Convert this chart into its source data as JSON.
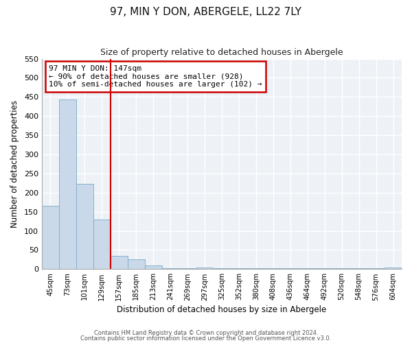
{
  "title": "97, MIN Y DON, ABERGELE, LL22 7LY",
  "subtitle": "Size of property relative to detached houses in Abergele",
  "xlabel": "Distribution of detached houses by size in Abergele",
  "ylabel": "Number of detached properties",
  "bar_color": "#c9d9ea",
  "bar_edge_color": "#7aaac8",
  "background_color": "#eef2f7",
  "fig_background_color": "#ffffff",
  "grid_color": "#ffffff",
  "annotation_box_color": "#cc0000",
  "vline_color": "#cc0000",
  "annotation_line1": "97 MIN Y DON: 147sqm",
  "annotation_line2": "← 90% of detached houses are smaller (928)",
  "annotation_line3": "10% of semi-detached houses are larger (102) →",
  "bins": [
    "45sqm",
    "73sqm",
    "101sqm",
    "129sqm",
    "157sqm",
    "185sqm",
    "213sqm",
    "241sqm",
    "269sqm",
    "297sqm",
    "325sqm",
    "352sqm",
    "380sqm",
    "408sqm",
    "436sqm",
    "464sqm",
    "492sqm",
    "520sqm",
    "548sqm",
    "576sqm",
    "604sqm"
  ],
  "values": [
    165,
    443,
    222,
    130,
    35,
    25,
    10,
    2,
    2,
    5,
    2,
    2,
    2,
    2,
    2,
    2,
    2,
    3,
    2,
    2,
    4
  ],
  "ylim": [
    0,
    550
  ],
  "yticks": [
    0,
    50,
    100,
    150,
    200,
    250,
    300,
    350,
    400,
    450,
    500,
    550
  ],
  "footer1": "Contains HM Land Registry data © Crown copyright and database right 2024.",
  "footer2": "Contains public sector information licensed under the Open Government Licence v3.0."
}
